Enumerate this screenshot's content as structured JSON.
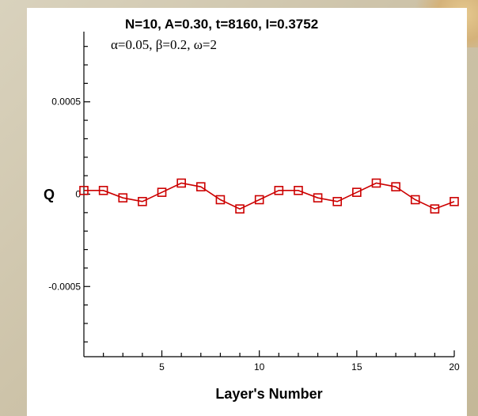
{
  "chart_data": {
    "type": "line",
    "title": "N=10, A=0.30, t=8160, I=0.3752",
    "subtitle": "α=0.05, β=0.2, ω=2",
    "xlabel": "Layer's Number",
    "ylabel": "Q",
    "xlim": [
      1,
      20
    ],
    "ylim": [
      -0.00088,
      0.00088
    ],
    "xticks": [
      5,
      10,
      15,
      20
    ],
    "xtick_labels": [
      "5",
      "10",
      "15",
      "20"
    ],
    "yticks": [
      -0.0005,
      0,
      0.0005
    ],
    "ytick_labels": [
      "-0.0005",
      "0",
      "0.0005"
    ],
    "grid": false,
    "marker": "square",
    "colors": {
      "series": "#cc0000"
    },
    "series": [
      {
        "x": [
          1,
          2,
          3,
          4,
          5,
          6,
          7,
          8,
          9,
          10,
          11,
          12,
          13,
          14,
          15,
          16,
          17,
          18,
          19,
          20
        ],
        "values": [
          2e-05,
          2e-05,
          -2e-05,
          -4e-05,
          1e-05,
          6e-05,
          4e-05,
          -3e-05,
          -8e-05,
          -3e-05,
          2e-05,
          2e-05,
          -2e-05,
          -4e-05,
          1e-05,
          6e-05,
          4e-05,
          -3e-05,
          -8e-05,
          -4e-05
        ]
      }
    ]
  }
}
